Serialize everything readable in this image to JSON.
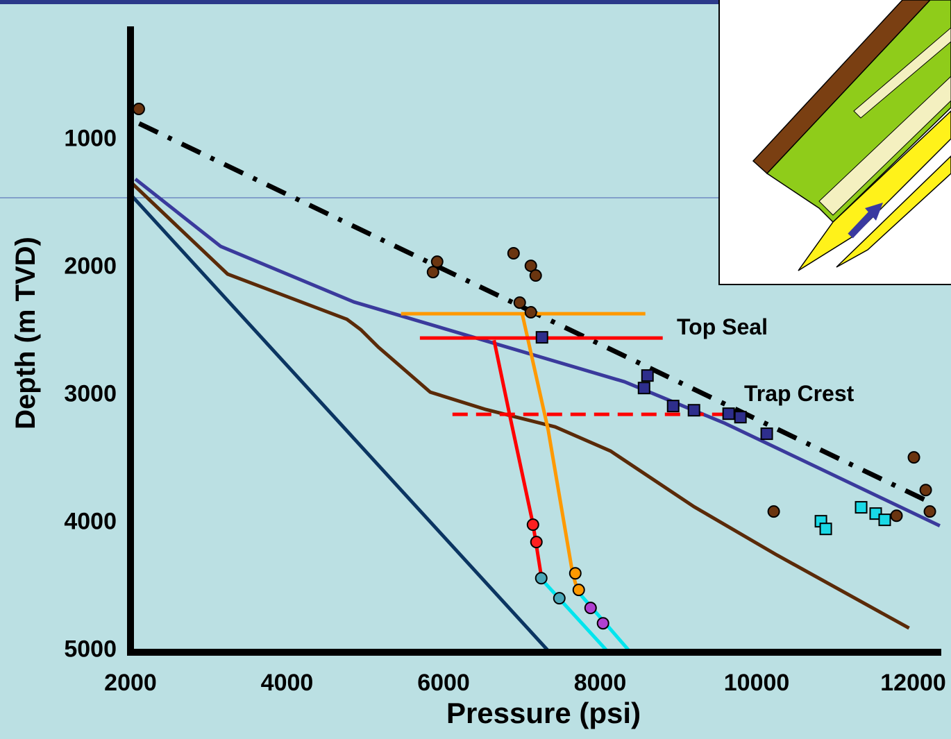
{
  "chart_data": {
    "type": "line",
    "xlabel": "Pressure (psi)",
    "ylabel": "Depth (m TVD)",
    "xlim": [
      2000,
      12350
    ],
    "ylim": [
      140,
      5030
    ],
    "y_inverted": true,
    "xticks": [
      2000,
      4000,
      6000,
      8000,
      10000,
      12000
    ],
    "yticks": [
      1000,
      2000,
      3000,
      4000,
      5000
    ],
    "annotations": [
      "Top Seal",
      "Trap Crest"
    ],
    "series": [
      {
        "mode": "line",
        "style": "dash-dot",
        "color": "#000000",
        "x": [
          2110,
          12230
        ],
        "y": [
          890,
          3860
        ]
      },
      {
        "mode": "line",
        "style": "solid",
        "color": "#3a3a9c",
        "x": [
          2062,
          3152,
          4855,
          8312,
          9598,
          12340
        ],
        "y": [
          1325,
          1852,
          2287,
          2912,
          3238,
          4040
        ]
      },
      {
        "mode": "line",
        "style": "solid",
        "color": "#0b3562",
        "x": [
          2000,
          7340
        ],
        "y": [
          1445,
          5020
        ]
      },
      {
        "mode": "line",
        "style": "solid",
        "color": "#5a2a08",
        "x": [
          2000,
          3241,
          4766,
          4943,
          5165,
          5830,
          6539,
          7426,
          8135,
          9199,
          10262,
          11947
        ],
        "y": [
          1347,
          2069,
          2423,
          2504,
          2640,
          2993,
          3129,
          3265,
          3455,
          3890,
          4270,
          4841
        ]
      },
      {
        "mode": "line",
        "style": "solid",
        "color": "#ff0000",
        "x": [
          6645,
          6849,
          7142,
          7248
        ],
        "y": [
          2586,
          3184,
          4026,
          4433
        ]
      },
      {
        "mode": "line",
        "style": "solid",
        "color": "#ff9900",
        "x": [
          7000,
          7337,
          7647,
          7709
        ],
        "y": [
          2368,
          3292,
          4406,
          4542
        ]
      },
      {
        "mode": "line",
        "style": "solid",
        "color": "#00e5ee",
        "x": [
          7230,
          8090
        ],
        "y": [
          4444,
          5020
        ]
      },
      {
        "mode": "line",
        "style": "solid",
        "color": "#00e5ee",
        "x": [
          7736,
          8374
        ],
        "y": [
          4569,
          5020
        ]
      },
      {
        "mode": "line",
        "style": "solid",
        "color": "#ff9900",
        "x": [
          5457,
          8578
        ],
        "y": [
          2379,
          2379
        ]
      },
      {
        "mode": "line",
        "style": "solid",
        "color": "#ff0000",
        "x": [
          5697,
          8800
        ],
        "y": [
          2569,
          2569
        ]
      },
      {
        "mode": "line",
        "style": "dashed",
        "color": "#ff0000",
        "x": [
          6113,
          9730
        ],
        "y": [
          3167,
          3167
        ]
      },
      {
        "mode": "markers",
        "marker": "circle",
        "color": "#6b3510",
        "x": [
          2106,
          5918,
          5865,
          6894,
          7115,
          7177,
          6973,
          7115,
          10218,
          12009,
          12160,
          12213,
          11787
        ],
        "y": [
          776,
          1972,
          2053,
          1906,
          2004,
          2080,
          2292,
          2368,
          3928,
          3504,
          3760,
          3928,
          3961
        ]
      },
      {
        "mode": "markers",
        "marker": "circle",
        "color": "#ff2020",
        "x": [
          7142,
          7186
        ],
        "y": [
          4031,
          4167
        ]
      },
      {
        "mode": "markers",
        "marker": "circle",
        "color": "#ff9900",
        "x": [
          7683,
          7727
        ],
        "y": [
          4412,
          4542
        ]
      },
      {
        "mode": "markers",
        "marker": "circle",
        "color": "#4aa7b8",
        "x": [
          7248,
          7479
        ],
        "y": [
          4450,
          4607
        ]
      },
      {
        "mode": "markers",
        "marker": "circle",
        "color": "#b040d0",
        "x": [
          7878,
          8037
        ],
        "y": [
          4683,
          4803
        ]
      },
      {
        "mode": "markers",
        "marker": "square",
        "color": "#2e2e8c",
        "x": [
          7257,
          8605,
          8561,
          8933,
          9199,
          9642,
          9793,
          10129
        ],
        "y": [
          2564,
          2863,
          2961,
          3102,
          3135,
          3162,
          3189,
          3319
        ]
      },
      {
        "mode": "markers",
        "marker": "square",
        "color": "#19d9e6",
        "x": [
          10821,
          10883,
          11335,
          11521,
          11636
        ],
        "y": [
          4004,
          4064,
          3895,
          3944,
          3993
        ]
      }
    ]
  }
}
